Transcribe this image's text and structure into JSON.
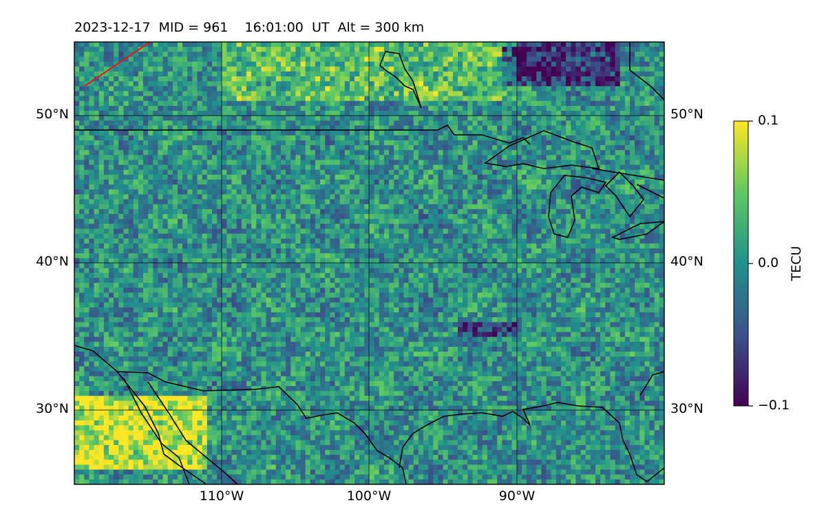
{
  "title": "2023-12-17  MID = 961    16:01:00  UT  Alt = 300 km",
  "map": {
    "lon_range": [
      -120,
      -80
    ],
    "lat_range": [
      25,
      55
    ],
    "lon_ticks": [
      {
        "value": -110,
        "label": "110°W"
      },
      {
        "value": -100,
        "label": "100°W"
      },
      {
        "value": -90,
        "label": "90°W"
      }
    ],
    "lat_ticks": [
      {
        "value": 30,
        "label": "30°N"
      },
      {
        "value": 40,
        "label": "40°N"
      },
      {
        "value": 50,
        "label": "50°N"
      }
    ],
    "gridlines": true,
    "colormap": "viridis",
    "field": "TEC differential perturbation",
    "colors": {
      "viridis_stops": [
        "#440154",
        "#3b528b",
        "#21918c",
        "#5ec962",
        "#fde725"
      ],
      "boundaries": "#000000",
      "track": "#e31a1c",
      "grid": "#000000"
    }
  },
  "colorbar": {
    "label": "TECU",
    "min": -0.1,
    "max": 0.1,
    "ticks": [
      {
        "value": 0.1,
        "label": "0.1"
      },
      {
        "value": 0.0,
        "label": "0.0"
      },
      {
        "value": -0.1,
        "label": "−0.1"
      }
    ]
  },
  "chart_data": {
    "type": "heatmap",
    "title": "2023-12-17  MID = 961    16:01:00  UT  Alt = 300 km",
    "x_range": [
      -120,
      -80
    ],
    "y_range": [
      25,
      55
    ],
    "colorbar_label": "TECU",
    "value_range": [
      -0.1,
      0.1
    ],
    "notable_regions": [
      {
        "description": "strong positive band",
        "lon": [
          -120,
          -111
        ],
        "lat": [
          26,
          31
        ]
      },
      {
        "description": "positive patches along northern edge",
        "lon": [
          -110,
          -90
        ],
        "lat": [
          51,
          55
        ]
      },
      {
        "description": "negative patch",
        "lon": [
          -91,
          -83
        ],
        "lat": [
          52,
          55
        ]
      },
      {
        "description": "negative patch",
        "lon": [
          -94,
          -90
        ],
        "lat": [
          35,
          36
        ]
      }
    ]
  }
}
